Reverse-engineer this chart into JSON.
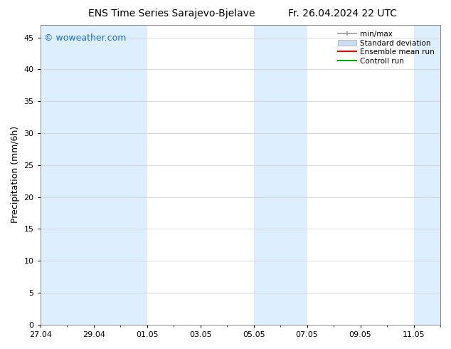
{
  "title_left": "ENS Time Series Sarajevo-Bjelave",
  "title_right": "Fr. 26.04.2024 22 UTC",
  "ylabel": "Precipitation (mm/6h)",
  "watermark": "© woweather.com",
  "background_color": "#ffffff",
  "plot_bg_color": "#ffffff",
  "ylim": [
    0,
    47
  ],
  "yticks": [
    0,
    5,
    10,
    15,
    20,
    25,
    30,
    35,
    40,
    45
  ],
  "x_tick_days": [
    0,
    2,
    4,
    6,
    8,
    10,
    12,
    14
  ],
  "x_labels": [
    "27.04",
    "29.04",
    "01.05",
    "03.05",
    "05.05",
    "07.05",
    "09.05",
    "11.05"
  ],
  "x_min": 0,
  "x_max": 15,
  "shade_band_color": "#ddeeff",
  "shade_bands": [
    [
      0,
      2
    ],
    [
      2,
      4
    ],
    [
      8,
      10
    ],
    [
      14,
      15
    ]
  ],
  "legend_labels": [
    "min/max",
    "Standard deviation",
    "Ensemble mean run",
    "Controll run"
  ],
  "legend_minmax_color": "#999999",
  "legend_stddev_color": "#c8ddf0",
  "legend_ensemble_color": "#ff0000",
  "legend_control_color": "#00aa00",
  "title_fontsize": 10,
  "axis_label_fontsize": 9,
  "tick_fontsize": 8,
  "watermark_color": "#1a6fc4",
  "watermark_fontsize": 9,
  "legend_fontsize": 7.5,
  "grid_color": "#cccccc",
  "spine_color": "#888888"
}
